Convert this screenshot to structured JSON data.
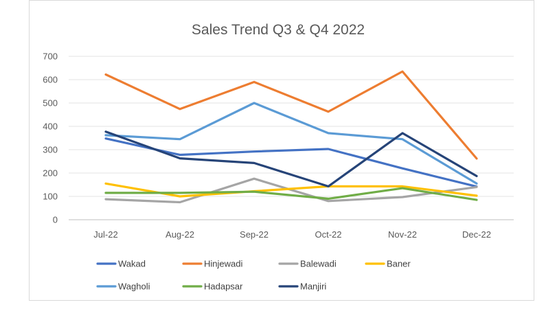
{
  "chart_data": {
    "type": "line",
    "title": "Sales Trend Q3 & Q4 2022",
    "xlabel": "",
    "ylabel": "",
    "categories": [
      "Jul-22",
      "Aug-22",
      "Sep-22",
      "Oct-22",
      "Nov-22",
      "Dec-22"
    ],
    "ylim": [
      0,
      700
    ],
    "yticks": [
      "0",
      "100",
      "200",
      "300",
      "400",
      "500",
      "600",
      "700"
    ],
    "grid": true,
    "legend_position": "bottom",
    "series": [
      {
        "name": "Wakad",
        "color": "#4472c4",
        "values": [
          348,
          278,
          292,
          303,
          220,
          142
        ]
      },
      {
        "name": "Hinjewadi",
        "color": "#ed7d31",
        "values": [
          622,
          474,
          590,
          463,
          635,
          262
        ]
      },
      {
        "name": "Balewadi",
        "color": "#a5a5a5",
        "values": [
          88,
          75,
          176,
          80,
          97,
          140
        ]
      },
      {
        "name": "Baner",
        "color": "#ffc000",
        "values": [
          155,
          100,
          122,
          143,
          143,
          103
        ]
      },
      {
        "name": "Wagholi",
        "color": "#5b9bd5",
        "values": [
          362,
          345,
          500,
          371,
          345,
          155
        ]
      },
      {
        "name": "Hadapsar",
        "color": "#70ad47",
        "values": [
          115,
          115,
          120,
          90,
          135,
          85
        ]
      },
      {
        "name": "Manjiri",
        "color": "#264478",
        "values": [
          377,
          263,
          243,
          143,
          371,
          187
        ]
      }
    ]
  }
}
